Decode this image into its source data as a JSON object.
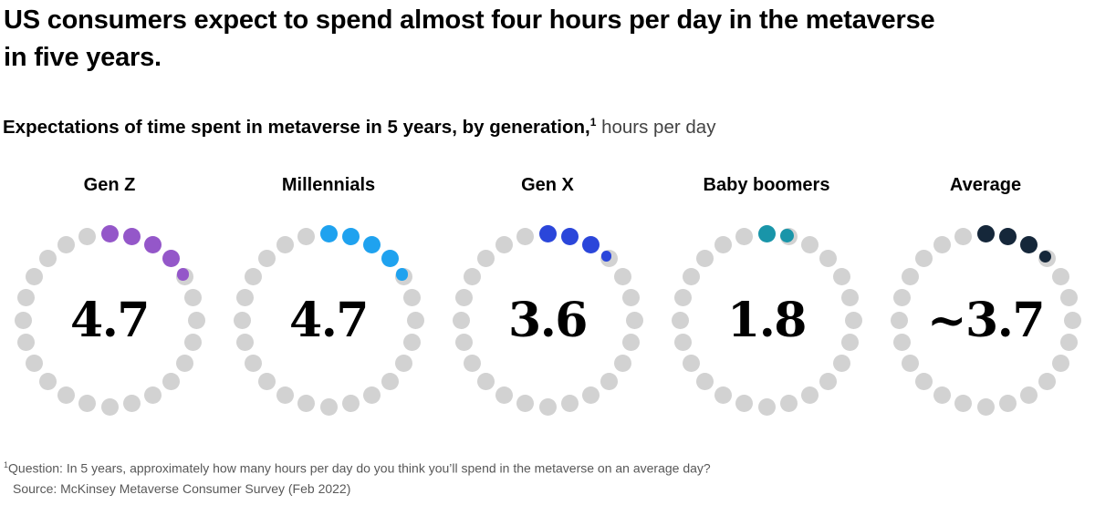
{
  "header": {
    "title_lines": [
      "US consumers expect to spend almost four hours per day in the metaverse",
      "in five years."
    ],
    "subtitle_bold": "Expectations of time spent in metaverse in 5 years, by generation,",
    "subtitle_sup": "1",
    "subtitle_rest": " hours per day"
  },
  "chart_data": {
    "type": "dot-ring",
    "title": "Expectations of time spent in metaverse in 5 years, by generation",
    "units": "hours per day",
    "dots_total": 24,
    "categories": [
      "Gen Z",
      "Millennials",
      "Gen X",
      "Baby boomers",
      "Average"
    ],
    "values": [
      4.7,
      4.7,
      3.6,
      1.8,
      3.7
    ],
    "value_labels": [
      "4.7",
      "4.7",
      "3.6",
      "1.8",
      "~3.7"
    ],
    "colors": [
      "#9457c9",
      "#1fa2ef",
      "#2b46da",
      "#1995a9",
      "#15273a"
    ],
    "inactive_color": "#d2d2d2",
    "start_position": "top",
    "direction": "clockwise"
  },
  "footnote": {
    "line1_sup": "1",
    "line1": "Question: In 5 years, approximately how many hours per day do you think you’ll spend in the metaverse on an average day?",
    "line2": "Source: McKinsey Metaverse Consumer Survey (Feb 2022)"
  }
}
